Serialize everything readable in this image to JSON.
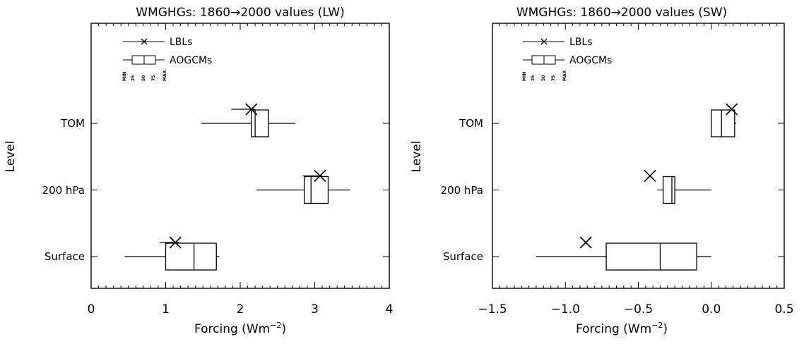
{
  "chart_data": [
    {
      "type": "box",
      "title": "WMGHGs: 1860→2000 values (LW)",
      "xlabel": "Forcing (Wm⁻²)",
      "ylabel": "Level",
      "xlim": [
        0,
        4
      ],
      "xticks": [
        "0",
        "1",
        "2",
        "3",
        "4"
      ],
      "levels": [
        "TOM",
        "200 hPa",
        "Surface"
      ],
      "legend": {
        "lbl": "LBLs",
        "aogcm": "AOGCMs",
        "box_keys": [
          "MIN",
          "25",
          "50",
          "75",
          "MAX"
        ]
      },
      "lbl": [
        {
          "level": "TOM",
          "value": 2.15,
          "low": 1.88,
          "high": 2.2
        },
        {
          "level": "200 hPa",
          "value": 3.07,
          "low": 2.84,
          "high": 3.1
        },
        {
          "level": "Surface",
          "value": 1.13,
          "low": 0.92,
          "high": 1.18
        }
      ],
      "aogcm": [
        {
          "level": "TOM",
          "min": 1.48,
          "q1": 2.15,
          "median": 2.2,
          "q3": 2.38,
          "max": 2.74
        },
        {
          "level": "200 hPa",
          "min": 2.22,
          "q1": 2.86,
          "median": 2.95,
          "q3": 3.18,
          "max": 3.47
        },
        {
          "level": "Surface",
          "min": 0.45,
          "q1": 1.0,
          "median": 1.38,
          "q3": 1.68,
          "max": 1.72
        }
      ]
    },
    {
      "type": "box",
      "title": "WMGHGs: 1860→2000 values (SW)",
      "xlabel": "Forcing (Wm⁻²)",
      "ylabel": "Level",
      "xlim": [
        -1.5,
        0.5
      ],
      "xticks": [
        "−1.5",
        "−1.0",
        "−0.5",
        "0.0",
        "0.5"
      ],
      "levels": [
        "TOM",
        "200 hPa",
        "Surface"
      ],
      "legend": {
        "lbl": "LBLs",
        "aogcm": "AOGCMs",
        "box_keys": [
          "MIN",
          "25",
          "50",
          "75",
          "MAX"
        ]
      },
      "lbl": [
        {
          "level": "TOM",
          "value": 0.14
        },
        {
          "level": "200 hPa",
          "value": -0.42
        },
        {
          "level": "Surface",
          "value": -0.86
        }
      ],
      "aogcm": [
        {
          "level": "TOM",
          "min": 0.0,
          "q1": 0.0,
          "median": 0.07,
          "q3": 0.16,
          "max": 0.17
        },
        {
          "level": "200 hPa",
          "min": -0.37,
          "q1": -0.33,
          "median": -0.27,
          "q3": -0.25,
          "max": 0.0
        },
        {
          "level": "Surface",
          "min": -1.2,
          "q1": -0.72,
          "median": -0.35,
          "q3": -0.1,
          "max": 0.0
        }
      ]
    }
  ]
}
